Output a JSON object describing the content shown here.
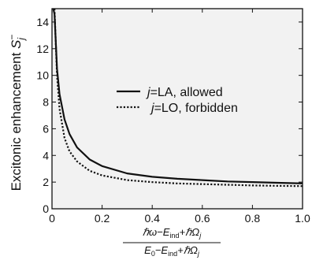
{
  "chart_data": {
    "type": "line",
    "ylabel": "Excitonic enhancement ",
    "ylabel_symbol": "S",
    "ylabel_sub": "j",
    "ylabel_sup": "−",
    "xlabel": {
      "numerator": "ℏω−E",
      "numerator_sub": "ind",
      "numerator_rest": "+ℏΩ",
      "numerator_sub2": "j",
      "denominator": "E",
      "denominator_sub0": "0",
      "denominator_mid": "−E",
      "denominator_sub": "ind",
      "denominator_rest": "+ℏΩ",
      "denominator_sub2": "j"
    },
    "xlim": [
      0,
      1.0
    ],
    "ylim": [
      0,
      15
    ],
    "x_ticks": [
      0,
      0.2,
      0.4,
      0.6,
      0.8,
      1.0
    ],
    "x_tick_labels": [
      "0",
      "0.2",
      "0.4",
      "0.6",
      "0.8",
      "1.0"
    ],
    "y_ticks": [
      0,
      2,
      4,
      6,
      8,
      10,
      12,
      14
    ],
    "y_tick_labels": [
      "0",
      "2",
      "4",
      "6",
      "8",
      "10",
      "12",
      "14"
    ],
    "grid": false,
    "legend_position": "upper-right",
    "series": [
      {
        "name": "j=LA, allowed",
        "legend_italic": "j",
        "legend_rest": "=LA, allowed",
        "style": "solid",
        "x": [
          0.005,
          0.01,
          0.02,
          0.03,
          0.05,
          0.07,
          0.1,
          0.15,
          0.2,
          0.3,
          0.4,
          0.5,
          0.6,
          0.7,
          0.8,
          0.9,
          1.0
        ],
        "y": [
          15.0,
          14.6,
          10.5,
          8.6,
          6.7,
          5.6,
          4.6,
          3.7,
          3.2,
          2.65,
          2.4,
          2.25,
          2.15,
          2.05,
          2.0,
          1.95,
          1.9
        ]
      },
      {
        "name": "j=LO, forbidden",
        "legend_italic": "j",
        "legend_rest": "=LO, forbidden",
        "style": "dotted",
        "x": [
          0.01,
          0.02,
          0.03,
          0.05,
          0.07,
          0.1,
          0.15,
          0.2,
          0.3,
          0.4,
          0.5,
          0.6,
          0.7,
          0.8,
          0.9,
          1.0
        ],
        "y": [
          15.0,
          10.0,
          7.5,
          5.3,
          4.3,
          3.55,
          2.85,
          2.5,
          2.15,
          2.0,
          1.9,
          1.85,
          1.8,
          1.75,
          1.72,
          1.7
        ]
      }
    ],
    "colors": {
      "line": "#111111",
      "background": "#f2f2f2"
    }
  }
}
